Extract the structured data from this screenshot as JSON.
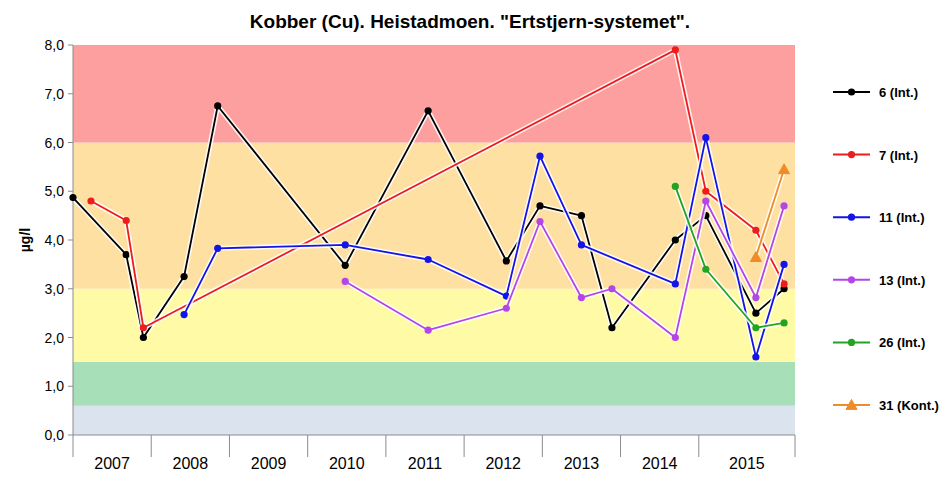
{
  "chart_data": {
    "type": "line",
    "title": "Kobber (Cu). Heistadmoen. \"Ertstjern-systemet\".",
    "ylabel": "µg/l",
    "xlim": [
      2007,
      2016.23
    ],
    "xticks": [
      2007,
      2008,
      2009,
      2010,
      2011,
      2012,
      2013,
      2014,
      2015
    ],
    "ylim": [
      0,
      8
    ],
    "yticks": [
      {
        "value": 0,
        "label": "0,0"
      },
      {
        "value": 1,
        "label": "1,0"
      },
      {
        "value": 2,
        "label": "2,0"
      },
      {
        "value": 3,
        "label": "3,0"
      },
      {
        "value": 4,
        "label": "4,0"
      },
      {
        "value": 5,
        "label": "5,0"
      },
      {
        "value": 6,
        "label": "6,0"
      },
      {
        "value": 7,
        "label": "7,0"
      },
      {
        "value": 8,
        "label": "8,0"
      }
    ],
    "grid": false,
    "legend": "right",
    "bands": [
      {
        "from": 0,
        "to": 0.6,
        "color": "#dbe3ef"
      },
      {
        "from": 0.6,
        "to": 1.5,
        "color": "#a7dfb8"
      },
      {
        "from": 1.5,
        "to": 3.0,
        "color": "#fffaa5"
      },
      {
        "from": 3.0,
        "to": 6.0,
        "color": "#fee0a3"
      },
      {
        "from": 6.0,
        "to": 8.0,
        "color": "#fd9f9f"
      }
    ],
    "series": [
      {
        "name": "6 (Int.)",
        "color": "#000000",
        "marker": "circle",
        "x": [
          2007.0,
          2007.68,
          2007.9,
          2008.42,
          2008.85,
          2010.48,
          2011.54,
          2012.54,
          2012.97,
          2013.5,
          2013.89,
          2014.7,
          2015.09,
          2015.73,
          2016.09
        ],
        "values": [
          4.87,
          3.7,
          2.0,
          3.25,
          6.75,
          3.48,
          6.65,
          3.57,
          4.7,
          4.5,
          2.2,
          4.0,
          4.5,
          2.5,
          3.0
        ]
      },
      {
        "name": "7 (Int.)",
        "color": "#ee1c1c",
        "marker": "circle",
        "x": [
          2007.23,
          2007.68,
          2007.9,
          2014.7,
          2015.09,
          2015.73,
          2016.09
        ],
        "values": [
          4.8,
          4.4,
          2.2,
          7.9,
          5.0,
          4.2,
          3.1
        ]
      },
      {
        "name": "11 (Int.)",
        "color": "#1414e6",
        "marker": "circle",
        "x": [
          2008.42,
          2008.85,
          2010.48,
          2011.54,
          2012.54,
          2012.97,
          2013.5,
          2014.7,
          2015.09,
          2015.73,
          2016.09
        ],
        "values": [
          2.47,
          3.83,
          3.9,
          3.6,
          2.85,
          5.72,
          3.9,
          3.1,
          6.1,
          1.6,
          3.5
        ]
      },
      {
        "name": "13 (Int.)",
        "color": "#b446e8",
        "marker": "circle",
        "x": [
          2010.48,
          2011.54,
          2012.54,
          2012.97,
          2013.5,
          2013.89,
          2014.7,
          2015.09,
          2015.73,
          2016.09
        ],
        "values": [
          3.15,
          2.15,
          2.6,
          4.38,
          2.82,
          3.0,
          2.0,
          4.8,
          2.82,
          4.7
        ]
      },
      {
        "name": "26 (Int.)",
        "color": "#22a322",
        "marker": "circle",
        "x": [
          2014.7,
          2015.09,
          2015.73,
          2016.09
        ],
        "values": [
          5.1,
          3.4,
          2.2,
          2.3
        ]
      },
      {
        "name": "31 (Kont.)",
        "color": "#f08c28",
        "marker": "triangle",
        "x": [
          2015.73,
          2016.09
        ],
        "values": [
          3.65,
          5.45
        ]
      }
    ]
  }
}
